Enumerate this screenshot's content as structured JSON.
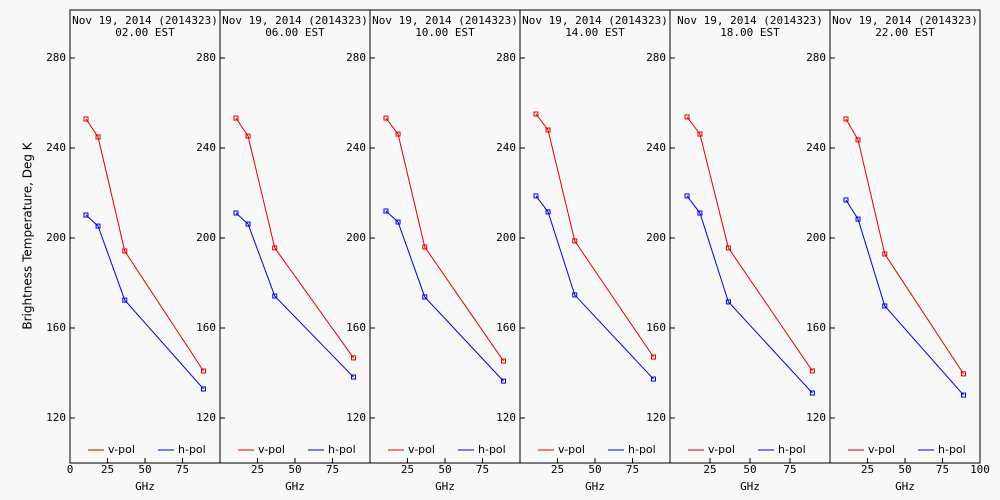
{
  "chart_data": [
    {
      "type": "line",
      "title": "Nov 19, 2014 (2014323)",
      "subtitle": "02.00 EST",
      "xlabel": "GHz",
      "ylabel": "Brightness Temperature, Deg K",
      "x": [
        10.65,
        18.7,
        36.5,
        89
      ],
      "xlim": [
        0,
        100
      ],
      "xticks": [
        0,
        25,
        50,
        75
      ],
      "ylim": [
        100,
        300
      ],
      "yticks": [
        120,
        160,
        200,
        240,
        280
      ],
      "series": [
        {
          "name": "v-pol",
          "color": "#e00000",
          "values": [
            252.9,
            244.9,
            194.2,
            140.9
          ]
        },
        {
          "name": "h-pol",
          "color": "#0000e0",
          "values": [
            210.2,
            205.3,
            172.4,
            132.9
          ]
        }
      ]
    },
    {
      "type": "line",
      "title": "Nov 19, 2014 (2014323)",
      "subtitle": "06.00 EST",
      "xlabel": "GHz",
      "x": [
        10.65,
        18.7,
        36.5,
        89
      ],
      "xlim": [
        0,
        100
      ],
      "xticks": [
        25,
        50,
        75
      ],
      "ylim": [
        100,
        300
      ],
      "yticks": [
        120,
        160,
        200,
        240,
        280
      ],
      "series": [
        {
          "name": "v-pol",
          "color": "#e00000",
          "values": [
            253.3,
            245.3,
            195.6,
            146.7
          ]
        },
        {
          "name": "h-pol",
          "color": "#0000e0",
          "values": [
            211.1,
            206.2,
            174.2,
            138.2
          ]
        }
      ]
    },
    {
      "type": "line",
      "title": "Nov 19, 2014 (2014323)",
      "subtitle": "10.00 EST",
      "xlabel": "GHz",
      "x": [
        10.65,
        18.7,
        36.5,
        89
      ],
      "xlim": [
        0,
        100
      ],
      "xticks": [
        25,
        50,
        75
      ],
      "ylim": [
        100,
        300
      ],
      "yticks": [
        120,
        160,
        200,
        240,
        280
      ],
      "series": [
        {
          "name": "v-pol",
          "color": "#e00000",
          "values": [
            253.3,
            246.2,
            196,
            145.3
          ]
        },
        {
          "name": "h-pol",
          "color": "#0000e0",
          "values": [
            212,
            207.1,
            173.8,
            136.4
          ]
        }
      ]
    },
    {
      "type": "line",
      "title": "Nov 19, 2014 (2014323)",
      "subtitle": "14.00 EST",
      "xlabel": "GHz",
      "x": [
        10.65,
        18.7,
        36.5,
        89
      ],
      "xlim": [
        0,
        100
      ],
      "xticks": [
        25,
        50,
        75
      ],
      "ylim": [
        100,
        300
      ],
      "yticks": [
        120,
        160,
        200,
        240,
        280
      ],
      "series": [
        {
          "name": "v-pol",
          "color": "#e00000",
          "values": [
            255.1,
            248,
            198.7,
            147.1
          ]
        },
        {
          "name": "h-pol",
          "color": "#0000e0",
          "values": [
            218.7,
            211.6,
            174.7,
            137.3
          ]
        }
      ]
    },
    {
      "type": "line",
      "title": "Nov 19, 2014 (2014323)",
      "subtitle": "18.00 EST",
      "xlabel": "GHz",
      "x": [
        10.65,
        18.7,
        36.5,
        89
      ],
      "xlim": [
        0,
        100
      ],
      "xticks": [
        25,
        50,
        75
      ],
      "ylim": [
        100,
        300
      ],
      "yticks": [
        120,
        160,
        200,
        240,
        280
      ],
      "series": [
        {
          "name": "v-pol",
          "color": "#e00000",
          "values": [
            253.8,
            246.2,
            195.6,
            140.9
          ]
        },
        {
          "name": "h-pol",
          "color": "#0000e0",
          "values": [
            218.7,
            211.1,
            171.6,
            131.1
          ]
        }
      ]
    },
    {
      "type": "line",
      "title": "Nov 19, 2014 (2014323)",
      "subtitle": "22.00 EST",
      "xlabel": "GHz",
      "x": [
        10.65,
        18.7,
        36.5,
        89
      ],
      "xlim": [
        0,
        100
      ],
      "xticks": [
        25,
        50,
        75,
        100
      ],
      "ylim": [
        100,
        300
      ],
      "yticks": [
        120,
        160,
        200,
        240,
        280
      ],
      "series": [
        {
          "name": "v-pol",
          "color": "#e00000",
          "values": [
            252.9,
            243.6,
            192.9,
            139.6
          ]
        },
        {
          "name": "h-pol",
          "color": "#0000e0",
          "values": [
            216.9,
            208.4,
            169.8,
            130.2
          ]
        }
      ]
    }
  ]
}
